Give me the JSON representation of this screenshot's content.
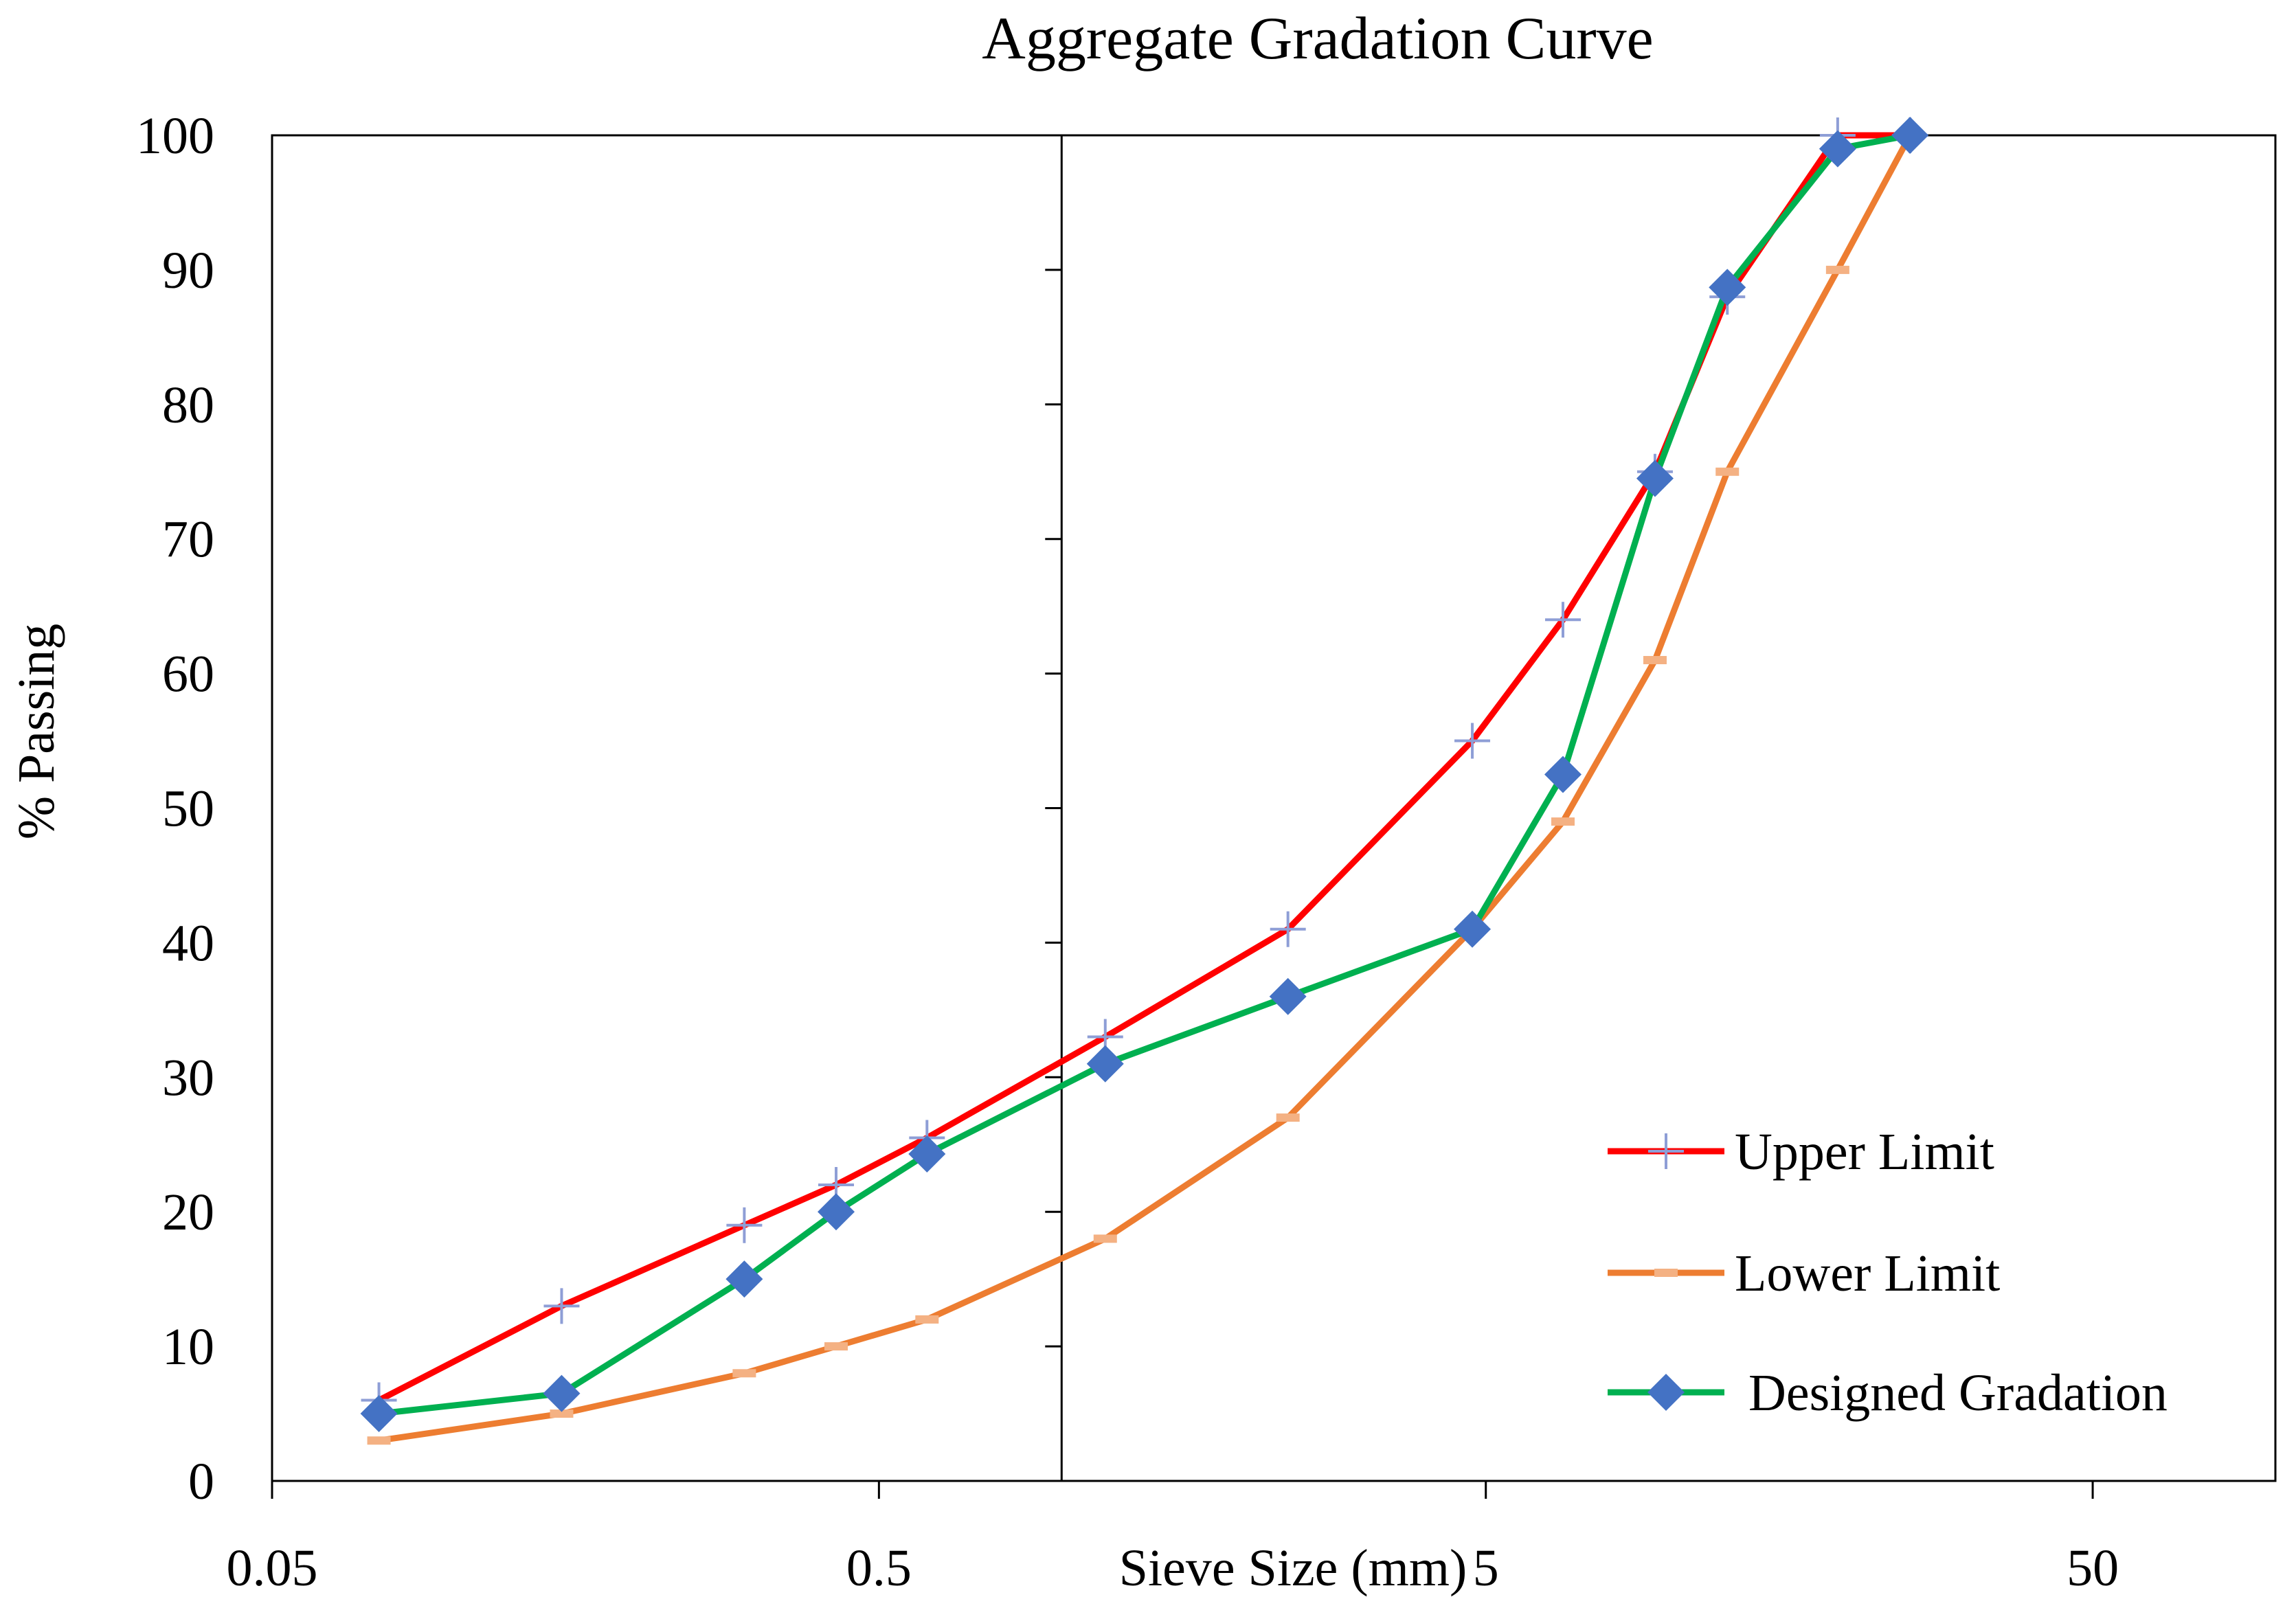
{
  "chart_data": {
    "type": "line",
    "title": "Aggregate Gradation Curve",
    "xlabel": "Sieve Size (mm)",
    "ylabel": "% Passing",
    "xscale": "log",
    "xlim": [
      0.05,
      100
    ],
    "ylim": [
      0,
      100
    ],
    "x_ticks": [
      0.05,
      0.5,
      5,
      50
    ],
    "x_tick_labels": [
      "0.05",
      "0.5",
      "5",
      "50"
    ],
    "y_ticks": [
      0,
      10,
      20,
      30,
      40,
      50,
      60,
      70,
      80,
      90,
      100
    ],
    "y_tick_labels": [
      "0",
      "10",
      "20",
      "30",
      "40",
      "50",
      "60",
      "70",
      "80",
      "90",
      "100"
    ],
    "legend_position": "bottom-right",
    "series": [
      {
        "name": "Upper Limit",
        "color": "#ff0000",
        "marker": "plus",
        "marker_color": "#8e9ed6",
        "x": [
          0.075,
          0.15,
          0.3,
          0.425,
          0.6,
          1.18,
          2.36,
          4.75,
          6.7,
          9.5,
          12.5,
          19,
          25
        ],
        "y": [
          6,
          13,
          19,
          22,
          25.5,
          33,
          41,
          55,
          64,
          75,
          88,
          100,
          100
        ]
      },
      {
        "name": "Lower Limit",
        "color": "#ed7d31",
        "marker": "dash",
        "marker_color": "#f4b183",
        "x": [
          0.075,
          0.15,
          0.3,
          0.425,
          0.6,
          1.18,
          2.36,
          4.75,
          6.7,
          9.5,
          12.5,
          19,
          25
        ],
        "y": [
          3,
          5,
          8,
          10,
          12,
          18,
          27,
          41,
          49,
          61,
          75,
          90,
          100
        ]
      },
      {
        "name": "Designed Gradation",
        "color": "#00b050",
        "marker": "diamond",
        "marker_color": "#4472c4",
        "x": [
          0.075,
          0.15,
          0.3,
          0.425,
          0.6,
          1.18,
          2.36,
          4.75,
          6.7,
          9.5,
          12.5,
          19,
          25
        ],
        "y": [
          5,
          6.5,
          15,
          20,
          24.3,
          31,
          36,
          41,
          52.5,
          74.5,
          88.7,
          99,
          100
        ]
      }
    ]
  }
}
